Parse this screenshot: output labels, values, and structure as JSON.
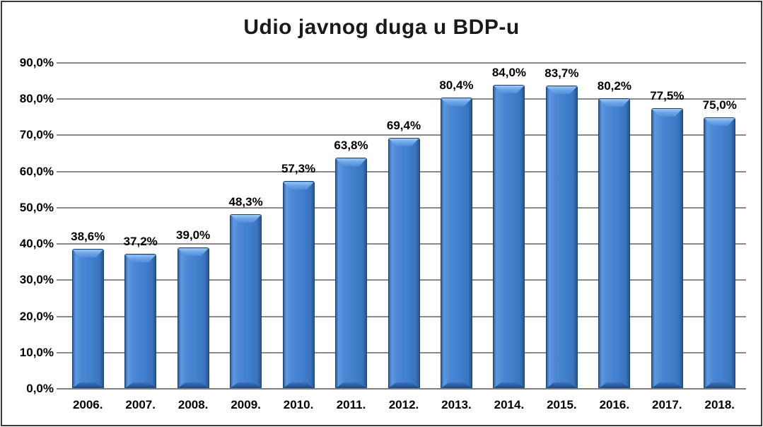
{
  "chart_data": {
    "type": "bar",
    "title": "Udio javnog duga u BDP-u",
    "categories": [
      "2006.",
      "2007.",
      "2008.",
      "2009.",
      "2010.",
      "2011.",
      "2012.",
      "2013.",
      "2014.",
      "2015.",
      "2016.",
      "2017.",
      "2018."
    ],
    "values": [
      38.6,
      37.2,
      39.0,
      48.3,
      57.3,
      63.8,
      69.4,
      80.4,
      84.0,
      83.7,
      80.2,
      77.5,
      75.0
    ],
    "value_labels": [
      "38,6%",
      "37,2%",
      "39,0%",
      "48,3%",
      "57,3%",
      "63,8%",
      "69,4%",
      "80,4%",
      "84,0%",
      "83,7%",
      "80,2%",
      "77,5%",
      "75,0%"
    ],
    "xlabel": "",
    "ylabel": "",
    "ylim": [
      0,
      90
    ],
    "ytick_step": 10,
    "ytick_labels": [
      "0,0%",
      "10,0%",
      "20,0%",
      "30,0%",
      "40,0%",
      "50,0%",
      "60,0%",
      "70,0%",
      "80,0%",
      "90,0%"
    ],
    "grid": "horizontal-only",
    "legend_position": "none",
    "colors": {
      "bar_fill": "#4180cd",
      "bar_fill_light": "#6ea7e8",
      "bar_fill_dark": "#27568f",
      "bar_border": "#1c4376",
      "gridline": "#8a8a8a",
      "axis_line": "#808080",
      "text": "#000000",
      "title_text": "#1a1a1a",
      "frame_border": "#3a3a3a",
      "background": "#ffffff"
    }
  }
}
